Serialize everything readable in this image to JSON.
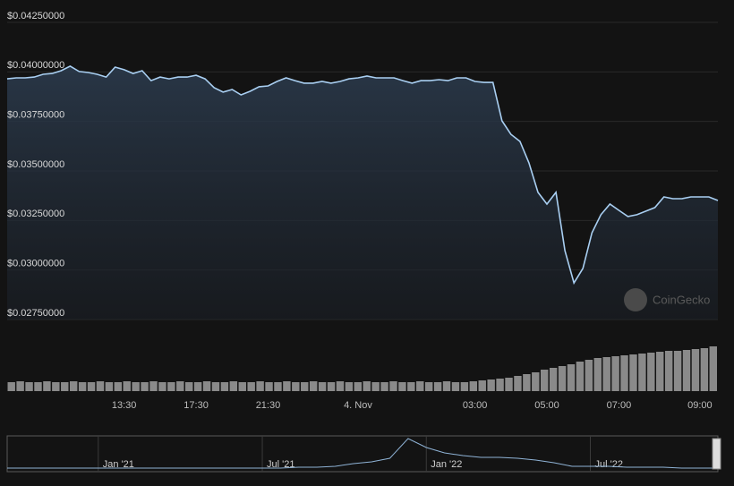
{
  "chart_data": [
    {
      "type": "line",
      "watermark": "CoinGecko",
      "color": "#a9cff2",
      "grid": true,
      "ylim": [
        0.0275,
        0.0425
      ],
      "yticks": [
        {
          "value": 0.0425,
          "label": "$0.04250000"
        },
        {
          "value": 0.04,
          "label": "$0.04000000"
        },
        {
          "value": 0.0375,
          "label": "$0.03750000"
        },
        {
          "value": 0.035,
          "label": "$0.03500000"
        },
        {
          "value": 0.0325,
          "label": "$0.03250000"
        },
        {
          "value": 0.03,
          "label": "$0.03000000"
        },
        {
          "value": 0.0275,
          "label": "$0.02750000"
        }
      ],
      "categories": [
        null,
        null,
        null,
        null,
        null,
        null,
        null,
        null,
        null,
        null,
        null,
        null,
        null,
        "13:30",
        null,
        null,
        null,
        null,
        null,
        null,
        null,
        "17:30",
        null,
        null,
        null,
        null,
        null,
        null,
        null,
        "21:30",
        null,
        null,
        null,
        null,
        null,
        null,
        null,
        null,
        null,
        "4. Nov",
        null,
        null,
        null,
        null,
        null,
        null,
        null,
        null,
        null,
        null,
        null,
        null,
        "03:00",
        null,
        null,
        null,
        null,
        null,
        null,
        null,
        "05:00",
        null,
        null,
        null,
        null,
        null,
        null,
        null,
        "07:00",
        null,
        null,
        null,
        null,
        null,
        null,
        null,
        null,
        "09:00",
        null,
        null
      ],
      "values": [
        0.03965,
        0.0397,
        0.0397,
        0.03974,
        0.03988,
        0.03992,
        0.04006,
        0.04029,
        0.04002,
        0.03997,
        0.03988,
        0.03974,
        0.04024,
        0.04011,
        0.03992,
        0.04006,
        0.03956,
        0.03974,
        0.03965,
        0.03974,
        0.03974,
        0.03983,
        0.03965,
        0.0392,
        0.03898,
        0.03911,
        0.03884,
        0.03902,
        0.03925,
        0.03929,
        0.03952,
        0.0397,
        0.03956,
        0.03943,
        0.03943,
        0.03952,
        0.03943,
        0.03952,
        0.03965,
        0.0397,
        0.03979,
        0.0397,
        0.0397,
        0.0397,
        0.03956,
        0.03943,
        0.03956,
        0.03956,
        0.03961,
        0.03956,
        0.0397,
        0.0397,
        0.03952,
        0.03947,
        0.03947,
        0.03753,
        0.03685,
        0.03649,
        0.03541,
        0.03392,
        0.03333,
        0.03392,
        0.03098,
        0.02935,
        0.03008,
        0.03188,
        0.03279,
        0.03333,
        0.03301,
        0.0327,
        0.03279,
        0.03297,
        0.03315,
        0.03369,
        0.0336,
        0.0336,
        0.03369,
        0.03369,
        0.03369,
        0.03351
      ]
    },
    {
      "type": "bar",
      "color": "#8a8a8a",
      "values": [
        10,
        11,
        10,
        10,
        11,
        10,
        10,
        11,
        10,
        10,
        11,
        10,
        10,
        11,
        10,
        10,
        11,
        10,
        10,
        11,
        10,
        10,
        11,
        10,
        10,
        11,
        10,
        10,
        11,
        10,
        10,
        11,
        10,
        10,
        11,
        10,
        10,
        11,
        10,
        10,
        11,
        10,
        10,
        11,
        10,
        10,
        11,
        10,
        10,
        11,
        10,
        10,
        11,
        12,
        13,
        14,
        15,
        17,
        19,
        21,
        24,
        26,
        28,
        30,
        33,
        35,
        37,
        38,
        39,
        40,
        41,
        42,
        43,
        44,
        45,
        45,
        46,
        47,
        48,
        50
      ]
    },
    {
      "type": "line",
      "color": "#8fb3d6",
      "categories": [
        null,
        null,
        null,
        null,
        null,
        "Jan '21",
        null,
        null,
        null,
        null,
        null,
        null,
        null,
        null,
        "Jul '21",
        null,
        null,
        null,
        null,
        null,
        null,
        null,
        null,
        "Jan '22",
        null,
        null,
        null,
        null,
        null,
        null,
        null,
        null,
        "Jul '22",
        null,
        null,
        null,
        null,
        null,
        null,
        null
      ],
      "values": [
        3,
        3,
        3,
        3,
        3,
        3,
        3,
        3,
        3,
        3,
        3,
        3,
        3,
        3,
        3,
        3,
        4,
        4,
        5,
        8,
        10,
        14,
        36,
        26,
        20,
        17,
        15,
        15,
        14,
        12,
        9,
        5,
        5,
        5,
        4,
        4,
        4,
        3,
        3,
        3
      ]
    }
  ]
}
